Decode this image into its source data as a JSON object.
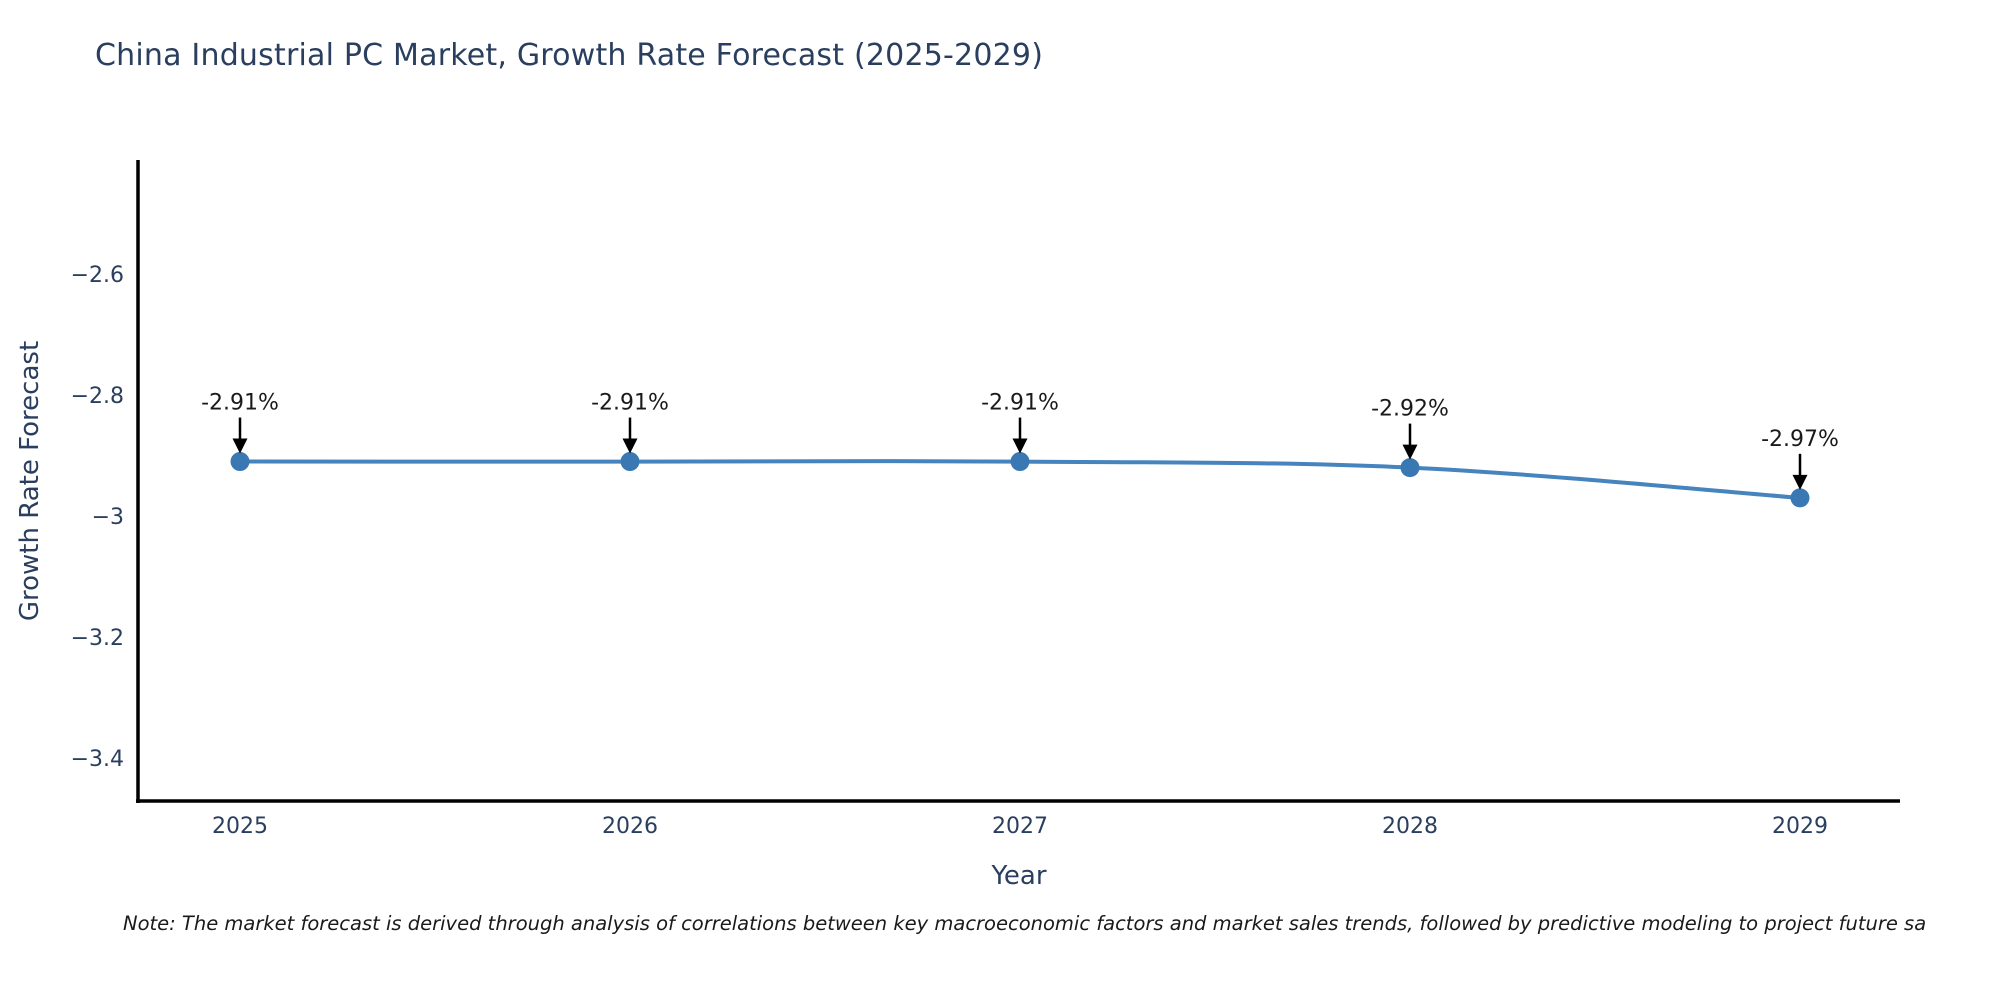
{
  "page": {
    "note": "Note: The market forecast is derived through analysis of correlations between key macroeconomic factors and market sales trends, followed by predictive modeling to project future sa"
  },
  "chart_data": {
    "type": "line",
    "title": "China Industrial PC Market, Growth Rate Forecast (2025-2029)",
    "xlabel": "Year",
    "ylabel": "Growth Rate Forecast",
    "categories": [
      "2025",
      "2026",
      "2027",
      "2028",
      "2029"
    ],
    "values": [
      -2.91,
      -2.91,
      -2.91,
      -2.92,
      -2.97
    ],
    "point_labels": [
      "-2.91%",
      "-2.91%",
      "-2.91%",
      "-2.92%",
      "-2.97%"
    ],
    "ytick_labels": [
      "−2.6",
      "−2.8",
      "−3",
      "−3.2",
      "−3.4"
    ],
    "ytick_values": [
      -2.6,
      -2.8,
      -3.0,
      -3.2,
      -3.4
    ],
    "ylim": [
      -3.47,
      -2.41
    ],
    "grid": false,
    "legend": "none",
    "line_color": "#4584bd",
    "marker_color": "#3a78b3",
    "axis_color": "#000000",
    "text_color": "#2a3f5f",
    "annotation_color": "#1a1a1a"
  }
}
